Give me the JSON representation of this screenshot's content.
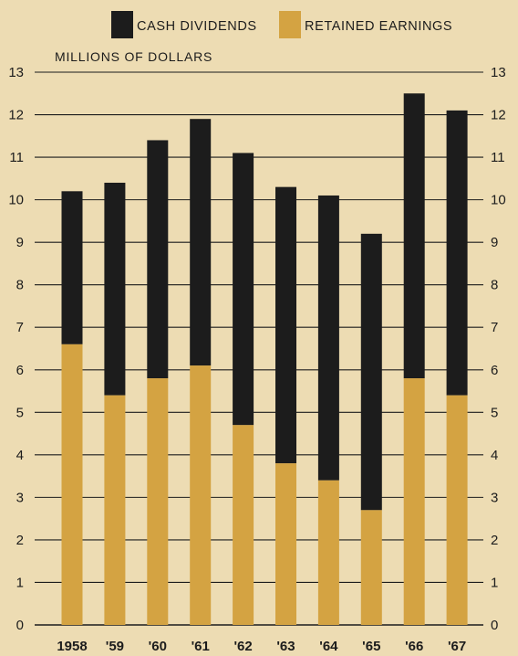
{
  "chart_data": {
    "type": "bar",
    "stacked": true,
    "title": "",
    "unit_label": "MILLIONS OF DOLLARS",
    "xlabel": "",
    "ylabel": "",
    "ylim": [
      0,
      13
    ],
    "yticks": [
      0,
      1,
      2,
      3,
      4,
      5,
      6,
      7,
      8,
      9,
      10,
      11,
      12,
      13
    ],
    "grid": true,
    "legend_position": "top",
    "categories": [
      "1958",
      "'59",
      "'60",
      "'61",
      "'62",
      "'63",
      "'64",
      "'65",
      "'66",
      "'67"
    ],
    "series": [
      {
        "name": "RETAINED EARNINGS",
        "color": "#d4a342",
        "values": [
          6.6,
          5.4,
          5.8,
          6.1,
          4.7,
          3.8,
          3.4,
          2.7,
          5.8,
          5.4
        ]
      },
      {
        "name": "CASH DIVIDENDS",
        "color": "#1c1c1c",
        "values": [
          3.6,
          5.0,
          5.6,
          5.8,
          6.4,
          6.5,
          6.7,
          6.5,
          6.7,
          6.7
        ]
      }
    ],
    "totals": [
      10.2,
      10.4,
      11.4,
      11.9,
      11.1,
      10.3,
      10.1,
      9.2,
      12.5,
      12.1
    ]
  },
  "legend": {
    "items": [
      {
        "label": "CASH DIVIDENDS",
        "color": "#1c1c1c"
      },
      {
        "label": "RETAINED EARNINGS",
        "color": "#d4a342"
      }
    ]
  },
  "colors": {
    "background": "#eddcb3",
    "gridline": "#1c1c1c"
  }
}
